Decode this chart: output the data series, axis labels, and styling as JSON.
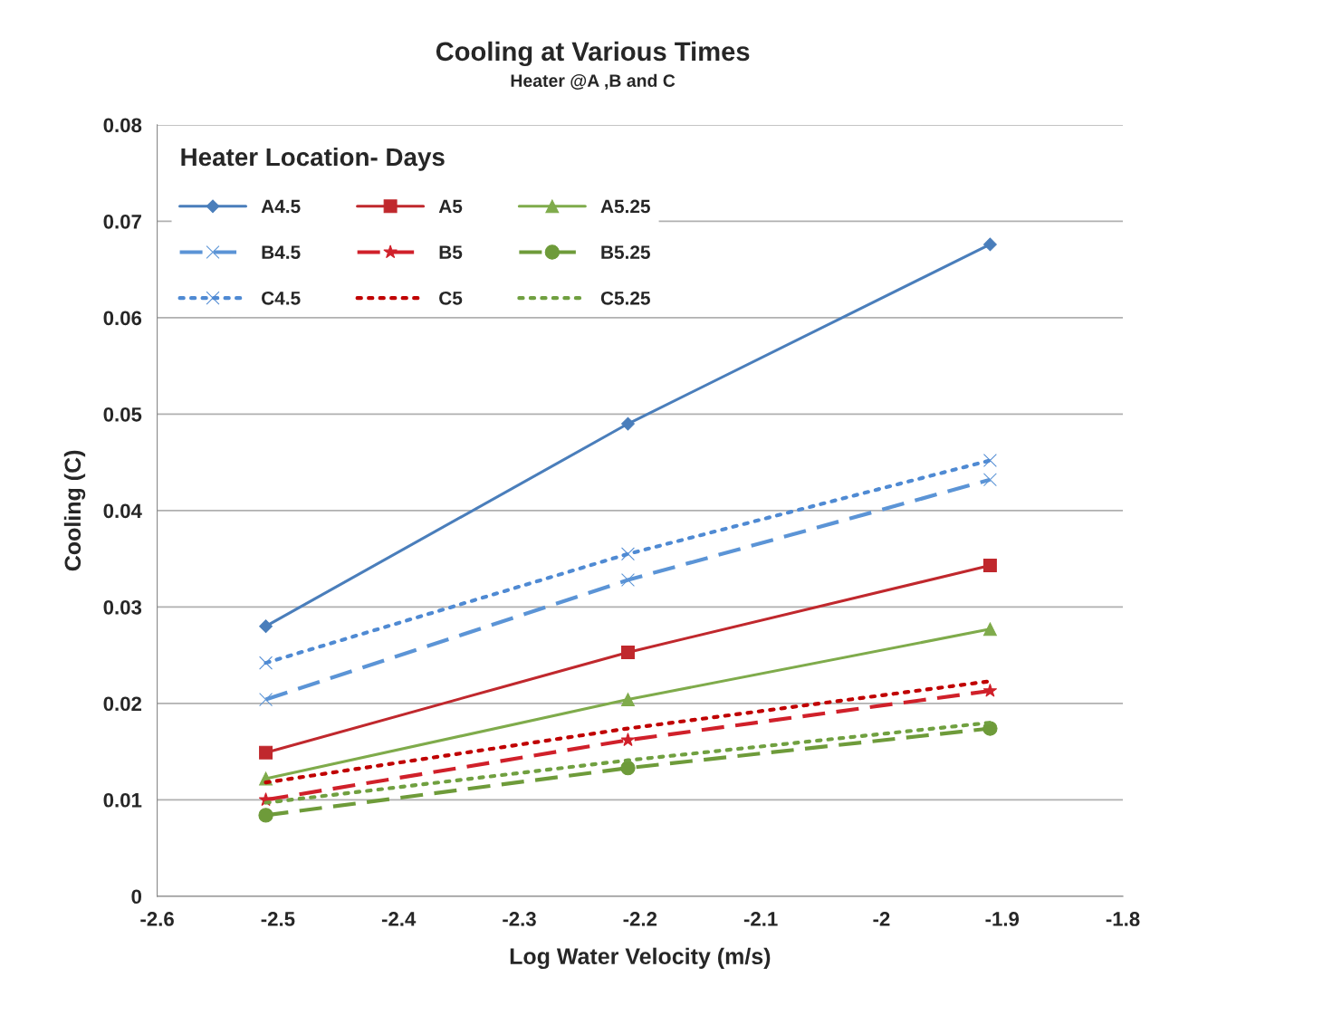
{
  "chart_data": {
    "type": "line",
    "title": "Cooling at Various Times",
    "subtitle": "Heater @A ,B and C",
    "xlabel": "Log Water Velocity (m/s)",
    "ylabel": "Cooling (C)",
    "legend_title": "Heater Location- Days",
    "x": [
      -2.51,
      -2.21,
      -1.91
    ],
    "series": [
      {
        "name": "A4.5",
        "color": "#4a7ebb",
        "marker": "diamond",
        "line_style": "solid",
        "values": [
          0.028,
          0.049,
          0.0676
        ]
      },
      {
        "name": "A5",
        "color": "#c0282d",
        "marker": "square",
        "line_style": "solid",
        "values": [
          0.0149,
          0.0253,
          0.0343
        ]
      },
      {
        "name": "A5.25",
        "color": "#7fab4b",
        "marker": "triangle",
        "line_style": "solid",
        "values": [
          0.0122,
          0.0204,
          0.0277
        ]
      },
      {
        "name": "B4.5",
        "color": "#5b94d6",
        "marker": "cross",
        "line_style": "dashed",
        "values": [
          0.0204,
          0.0328,
          0.0432
        ]
      },
      {
        "name": "B5",
        "color": "#d0202a",
        "marker": "star",
        "line_style": "dashed",
        "values": [
          0.01,
          0.0162,
          0.0213
        ]
      },
      {
        "name": "B5.25",
        "color": "#6e9b3a",
        "marker": "circle",
        "line_style": "dashed",
        "values": [
          0.0084,
          0.0133,
          0.0174
        ]
      },
      {
        "name": "C4.5",
        "color": "#4f8ad3",
        "marker": "cross",
        "line_style": "dotted",
        "values": [
          0.0242,
          0.0355,
          0.0452
        ]
      },
      {
        "name": "C5",
        "color": "#c00000",
        "marker": "none",
        "line_style": "dotted",
        "values": [
          0.0118,
          0.0174,
          0.0223
        ]
      },
      {
        "name": "C5.25",
        "color": "#70a040",
        "marker": "none",
        "line_style": "dotted",
        "values": [
          0.0097,
          0.0141,
          0.018
        ]
      }
    ],
    "xlim": [
      -2.6,
      -1.8
    ],
    "xticks": [
      -2.6,
      -2.5,
      -2.4,
      -2.3,
      -2.2,
      -2.1,
      {
        "value": -2.0,
        "label": "-2"
      },
      -1.9,
      -1.8
    ],
    "ylim": [
      0,
      0.08
    ],
    "yticks": [
      0,
      0.01,
      0.02,
      0.03,
      0.04,
      0.05,
      0.06,
      0.07,
      0.08
    ],
    "grid": "y",
    "legend": "top left"
  }
}
